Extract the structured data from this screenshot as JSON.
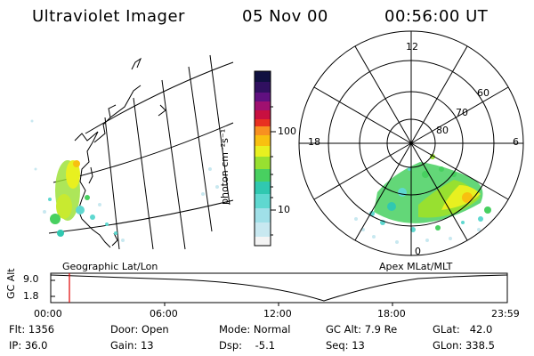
{
  "header": {
    "title": "Ultraviolet Imager",
    "date": "05 Nov 00",
    "time": "00:56:00 UT"
  },
  "panels": {
    "left_label": "Geographic Lat/Lon",
    "right_label": "Apex MLat/MLT"
  },
  "colorbar": {
    "unit_label": "photon cm⁻²s⁻¹",
    "tick_high": "100",
    "tick_low": "10",
    "colors": [
      "#f4f4f4",
      "#c8e8f0",
      "#5fd8d0",
      "#30c8b0",
      "#48d060",
      "#98e030",
      "#e8f020",
      "#f8c010",
      "#f89020",
      "#e83020",
      "#c81040",
      "#a01070",
      "#601080",
      "#301060",
      "#101040"
    ]
  },
  "polar_plot": {
    "mlt_labels": {
      "top": "12",
      "left": "18",
      "right": "6",
      "bottom": "0"
    },
    "lat_labels": [
      "60",
      "70",
      "80"
    ]
  },
  "timeline": {
    "axis_label": "GC Alt",
    "y_ticks": [
      "9.0",
      "1.8"
    ],
    "x_ticks": [
      "00:00",
      "06:00",
      "12:00",
      "18:00",
      "23:59"
    ],
    "marker_time": "00:56",
    "marker_color": "#e00000"
  },
  "info": {
    "flt": "Flt: 1356",
    "ip": "IP: 36.0",
    "door": "Door: Open",
    "gain": "Gain: 13",
    "mode": "Mode: Normal",
    "dsp": "Dsp:    -5.1",
    "gc_alt": "GC Alt: 7.9 Re",
    "seq": "Seq: 13",
    "glat": "GLat:   42.0",
    "glon": "GLon: 338.5"
  }
}
